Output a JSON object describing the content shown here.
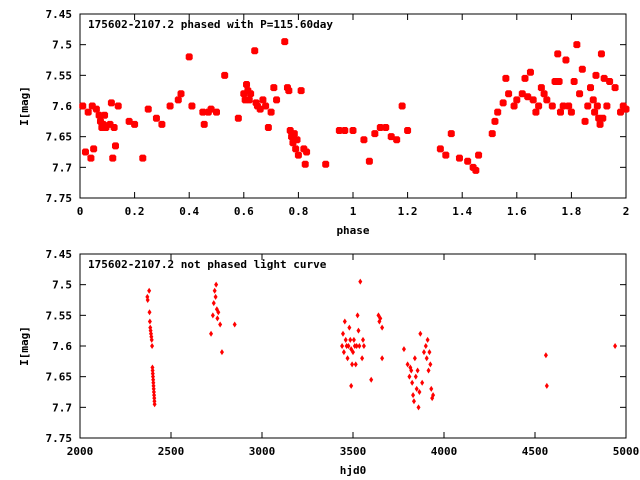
{
  "chart_data": [
    {
      "type": "scatter",
      "title": "175602-2107.2 phased with P=115.60day",
      "xlabel": "phase",
      "ylabel": "I[mag]",
      "xlim": [
        0,
        2
      ],
      "ylim": [
        7.45,
        7.75
      ],
      "y_inverted": true,
      "x_ticks": [
        "0",
        "0.2",
        "0.4",
        "0.6",
        "0.8",
        "1",
        "1.2",
        "1.4",
        "1.6",
        "1.8",
        "2"
      ],
      "x_tick_values": [
        0,
        0.2,
        0.4,
        0.6,
        0.8,
        1.0,
        1.2,
        1.4,
        1.6,
        1.8,
        2.0
      ],
      "y_ticks": [
        "7.45",
        "7.5",
        "7.55",
        "7.6",
        "7.65",
        "7.7",
        "7.75"
      ],
      "y_tick_values": [
        7.45,
        7.5,
        7.55,
        7.6,
        7.65,
        7.7,
        7.75
      ],
      "marker_color": "#ff0000",
      "marker": "square",
      "points": [
        [
          0.01,
          7.6
        ],
        [
          0.02,
          7.675
        ],
        [
          0.03,
          7.61
        ],
        [
          0.04,
          7.685
        ],
        [
          0.045,
          7.6
        ],
        [
          0.05,
          7.67
        ],
        [
          0.06,
          7.605
        ],
        [
          0.07,
          7.615
        ],
        [
          0.075,
          7.625
        ],
        [
          0.08,
          7.635
        ],
        [
          0.085,
          7.63
        ],
        [
          0.09,
          7.615
        ],
        [
          0.095,
          7.635
        ],
        [
          0.11,
          7.63
        ],
        [
          0.115,
          7.595
        ],
        [
          0.12,
          7.685
        ],
        [
          0.125,
          7.635
        ],
        [
          0.13,
          7.665
        ],
        [
          0.14,
          7.6
        ],
        [
          0.18,
          7.625
        ],
        [
          0.2,
          7.63
        ],
        [
          0.23,
          7.685
        ],
        [
          0.25,
          7.605
        ],
        [
          0.28,
          7.62
        ],
        [
          0.3,
          7.63
        ],
        [
          0.33,
          7.6
        ],
        [
          0.36,
          7.59
        ],
        [
          0.37,
          7.58
        ],
        [
          0.4,
          7.52
        ],
        [
          0.41,
          7.6
        ],
        [
          0.45,
          7.61
        ],
        [
          0.455,
          7.63
        ],
        [
          0.47,
          7.61
        ],
        [
          0.48,
          7.605
        ],
        [
          0.5,
          7.61
        ],
        [
          0.53,
          7.55
        ],
        [
          0.58,
          7.62
        ],
        [
          0.6,
          7.58
        ],
        [
          0.605,
          7.59
        ],
        [
          0.61,
          7.565
        ],
        [
          0.615,
          7.575
        ],
        [
          0.62,
          7.59
        ],
        [
          0.625,
          7.58
        ],
        [
          0.64,
          7.51
        ],
        [
          0.645,
          7.595
        ],
        [
          0.65,
          7.6
        ],
        [
          0.66,
          7.605
        ],
        [
          0.67,
          7.59
        ],
        [
          0.68,
          7.6
        ],
        [
          0.69,
          7.635
        ],
        [
          0.7,
          7.61
        ],
        [
          0.71,
          7.57
        ],
        [
          0.72,
          7.59
        ],
        [
          0.75,
          7.495
        ],
        [
          0.76,
          7.57
        ],
        [
          0.765,
          7.575
        ],
        [
          0.77,
          7.64
        ],
        [
          0.775,
          7.65
        ],
        [
          0.78,
          7.66
        ],
        [
          0.785,
          7.645
        ],
        [
          0.79,
          7.67
        ],
        [
          0.795,
          7.655
        ],
        [
          0.8,
          7.68
        ],
        [
          0.81,
          7.575
        ],
        [
          0.82,
          7.67
        ],
        [
          0.825,
          7.695
        ],
        [
          0.83,
          7.675
        ],
        [
          0.9,
          7.695
        ],
        [
          0.95,
          7.64
        ],
        [
          0.97,
          7.64
        ],
        [
          1.0,
          7.64
        ],
        [
          1.04,
          7.655
        ],
        [
          1.06,
          7.69
        ],
        [
          1.08,
          7.645
        ],
        [
          1.1,
          7.635
        ],
        [
          1.12,
          7.635
        ],
        [
          1.14,
          7.65
        ],
        [
          1.16,
          7.655
        ],
        [
          1.18,
          7.6
        ],
        [
          1.2,
          7.64
        ],
        [
          1.32,
          7.67
        ],
        [
          1.34,
          7.68
        ],
        [
          1.36,
          7.645
        ],
        [
          1.39,
          7.685
        ],
        [
          1.42,
          7.69
        ],
        [
          1.44,
          7.7
        ],
        [
          1.45,
          7.705
        ],
        [
          1.46,
          7.68
        ],
        [
          1.51,
          7.645
        ],
        [
          1.52,
          7.625
        ],
        [
          1.53,
          7.61
        ],
        [
          1.55,
          7.595
        ],
        [
          1.56,
          7.555
        ],
        [
          1.57,
          7.58
        ],
        [
          1.59,
          7.6
        ],
        [
          1.6,
          7.59
        ],
        [
          1.62,
          7.58
        ],
        [
          1.63,
          7.555
        ],
        [
          1.64,
          7.585
        ],
        [
          1.65,
          7.545
        ],
        [
          1.66,
          7.59
        ],
        [
          1.67,
          7.61
        ],
        [
          1.68,
          7.6
        ],
        [
          1.69,
          7.57
        ],
        [
          1.7,
          7.58
        ],
        [
          1.71,
          7.59
        ],
        [
          1.73,
          7.6
        ],
        [
          1.74,
          7.56
        ],
        [
          1.75,
          7.515
        ],
        [
          1.755,
          7.56
        ],
        [
          1.76,
          7.61
        ],
        [
          1.77,
          7.6
        ],
        [
          1.78,
          7.525
        ],
        [
          1.79,
          7.6
        ],
        [
          1.8,
          7.61
        ],
        [
          1.81,
          7.56
        ],
        [
          1.82,
          7.5
        ],
        [
          1.83,
          7.58
        ],
        [
          1.84,
          7.54
        ],
        [
          1.85,
          7.625
        ],
        [
          1.86,
          7.6
        ],
        [
          1.87,
          7.57
        ],
        [
          1.88,
          7.59
        ],
        [
          1.885,
          7.61
        ],
        [
          1.89,
          7.55
        ],
        [
          1.895,
          7.6
        ],
        [
          1.9,
          7.62
        ],
        [
          1.905,
          7.63
        ],
        [
          1.91,
          7.515
        ],
        [
          1.915,
          7.62
        ],
        [
          1.92,
          7.555
        ],
        [
          1.93,
          7.6
        ],
        [
          1.94,
          7.56
        ],
        [
          1.96,
          7.57
        ],
        [
          1.98,
          7.61
        ],
        [
          1.99,
          7.6
        ],
        [
          2.0,
          7.605
        ]
      ]
    },
    {
      "type": "scatter",
      "title": "175602-2107.2 not phased light curve",
      "xlabel": "hjd0",
      "ylabel": "I[mag]",
      "xlim": [
        2000,
        5000
      ],
      "ylim": [
        7.45,
        7.75
      ],
      "y_inverted": true,
      "x_ticks": [
        "2000",
        "2500",
        "3000",
        "3500",
        "4000",
        "4500",
        "5000"
      ],
      "x_tick_values": [
        2000,
        2500,
        3000,
        3500,
        4000,
        4500,
        5000
      ],
      "y_ticks": [
        "7.45",
        "7.5",
        "7.55",
        "7.6",
        "7.65",
        "7.7",
        "7.75"
      ],
      "y_tick_values": [
        7.45,
        7.5,
        7.55,
        7.6,
        7.65,
        7.7,
        7.75
      ],
      "marker_color": "#ff0000",
      "marker": "diamond",
      "points": [
        [
          2370,
          7.52
        ],
        [
          2372,
          7.525
        ],
        [
          2380,
          7.51
        ],
        [
          2382,
          7.545
        ],
        [
          2384,
          7.56
        ],
        [
          2386,
          7.57
        ],
        [
          2388,
          7.575
        ],
        [
          2390,
          7.58
        ],
        [
          2392,
          7.585
        ],
        [
          2394,
          7.59
        ],
        [
          2396,
          7.6
        ],
        [
          2398,
          7.635
        ],
        [
          2399,
          7.64
        ],
        [
          2400,
          7.645
        ],
        [
          2401,
          7.65
        ],
        [
          2402,
          7.655
        ],
        [
          2403,
          7.66
        ],
        [
          2404,
          7.665
        ],
        [
          2405,
          7.67
        ],
        [
          2406,
          7.675
        ],
        [
          2407,
          7.68
        ],
        [
          2408,
          7.685
        ],
        [
          2409,
          7.69
        ],
        [
          2410,
          7.695
        ],
        [
          2720,
          7.58
        ],
        [
          2730,
          7.55
        ],
        [
          2735,
          7.53
        ],
        [
          2740,
          7.51
        ],
        [
          2745,
          7.52
        ],
        [
          2748,
          7.5
        ],
        [
          2752,
          7.54
        ],
        [
          2755,
          7.555
        ],
        [
          2760,
          7.545
        ],
        [
          2770,
          7.565
        ],
        [
          2780,
          7.61
        ],
        [
          2850,
          7.565
        ],
        [
          3440,
          7.6
        ],
        [
          3445,
          7.58
        ],
        [
          3450,
          7.61
        ],
        [
          3455,
          7.56
        ],
        [
          3460,
          7.59
        ],
        [
          3465,
          7.6
        ],
        [
          3470,
          7.62
        ],
        [
          3475,
          7.6
        ],
        [
          3480,
          7.57
        ],
        [
          3485,
          7.59
        ],
        [
          3490,
          7.605
        ],
        [
          3495,
          7.63
        ],
        [
          3500,
          7.61
        ],
        [
          3505,
          7.59
        ],
        [
          3510,
          7.6
        ],
        [
          3515,
          7.63
        ],
        [
          3520,
          7.6
        ],
        [
          3525,
          7.55
        ],
        [
          3530,
          7.575
        ],
        [
          3535,
          7.6
        ],
        [
          3540,
          7.495
        ],
        [
          3550,
          7.62
        ],
        [
          3555,
          7.59
        ],
        [
          3560,
          7.6
        ],
        [
          3490,
          7.665
        ],
        [
          3600,
          7.655
        ],
        [
          3640,
          7.55
        ],
        [
          3645,
          7.56
        ],
        [
          3650,
          7.555
        ],
        [
          3660,
          7.57
        ],
        [
          3660,
          7.62
        ],
        [
          3780,
          7.605
        ],
        [
          3800,
          7.63
        ],
        [
          3810,
          7.65
        ],
        [
          3815,
          7.635
        ],
        [
          3820,
          7.64
        ],
        [
          3825,
          7.66
        ],
        [
          3830,
          7.68
        ],
        [
          3835,
          7.69
        ],
        [
          3840,
          7.62
        ],
        [
          3845,
          7.65
        ],
        [
          3850,
          7.67
        ],
        [
          3855,
          7.64
        ],
        [
          3860,
          7.7
        ],
        [
          3865,
          7.675
        ],
        [
          3870,
          7.58
        ],
        [
          3880,
          7.66
        ],
        [
          3890,
          7.61
        ],
        [
          3900,
          7.6
        ],
        [
          3905,
          7.62
        ],
        [
          3910,
          7.59
        ],
        [
          3915,
          7.64
        ],
        [
          3920,
          7.61
        ],
        [
          3925,
          7.63
        ],
        [
          3930,
          7.67
        ],
        [
          3935,
          7.685
        ],
        [
          3940,
          7.68
        ],
        [
          4560,
          7.615
        ],
        [
          4565,
          7.665
        ],
        [
          4940,
          7.6
        ]
      ]
    }
  ]
}
